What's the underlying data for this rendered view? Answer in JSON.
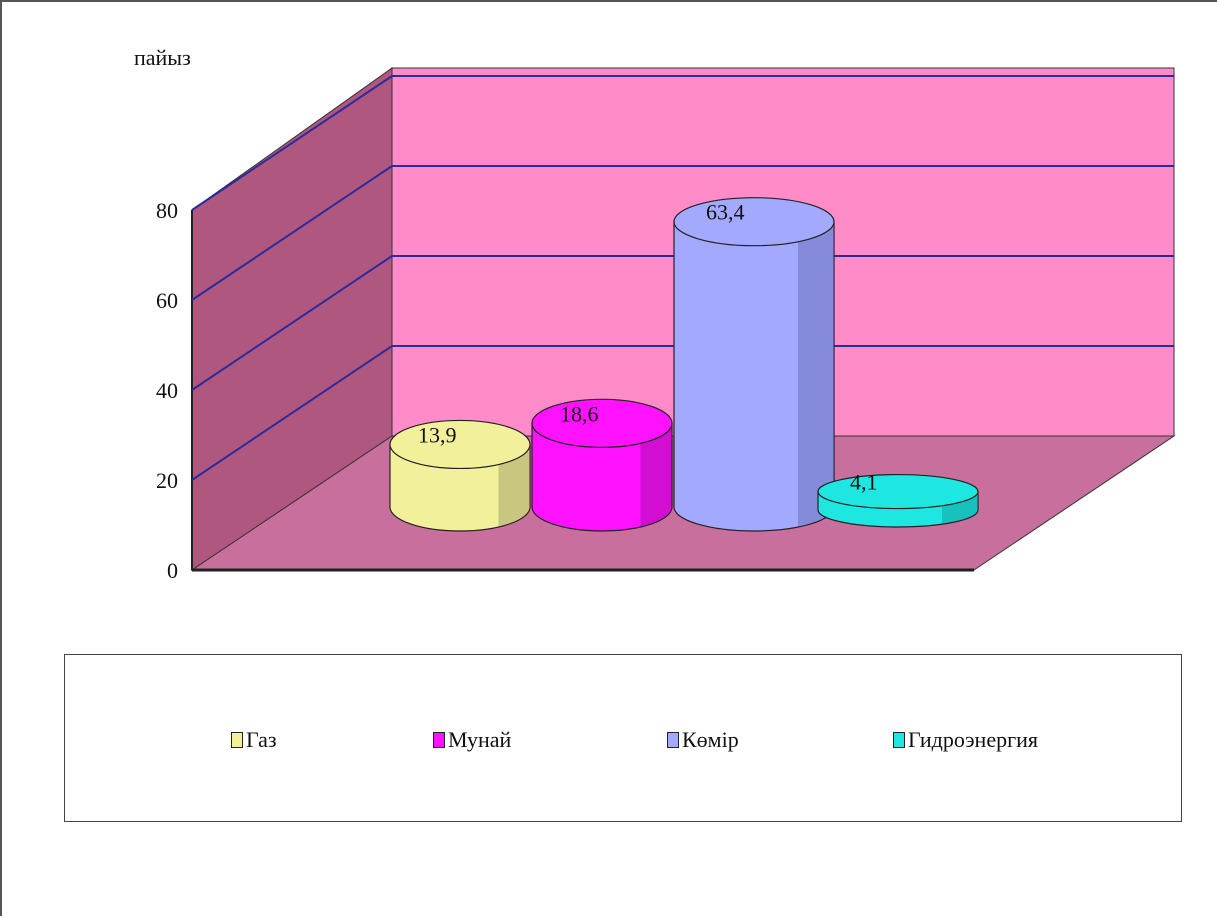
{
  "chart_data": {
    "type": "bar",
    "style": "3d-cylinder",
    "ylabel": "пайыз",
    "ylim": [
      0,
      80
    ],
    "yticks": [
      "0",
      "20",
      "40",
      "60",
      "80"
    ],
    "grid": true,
    "legend_position": "bottom",
    "series": [
      {
        "name": "Газ",
        "value": 13.9,
        "label": "13,9",
        "color": "#f3f09c",
        "edge": "#7b7a4a"
      },
      {
        "name": "Мунай",
        "value": 18.6,
        "label": "18,6",
        "color": "#ff12ff",
        "edge": "#7d0a7d"
      },
      {
        "name": "Көмір",
        "value": 63.4,
        "label": "63,4",
        "color": "#a3a9ff",
        "edge": "#4c4f99"
      },
      {
        "name": "Гидроэнергия",
        "value": 4.1,
        "label": "4,1",
        "color": "#1ee6e0",
        "edge": "#0f7a77"
      }
    ],
    "colors": {
      "back_wall": "#ff8cc8",
      "side_wall": "#b0577f",
      "floor": "#c96f9d",
      "gridline": "#2b2b9c"
    }
  }
}
